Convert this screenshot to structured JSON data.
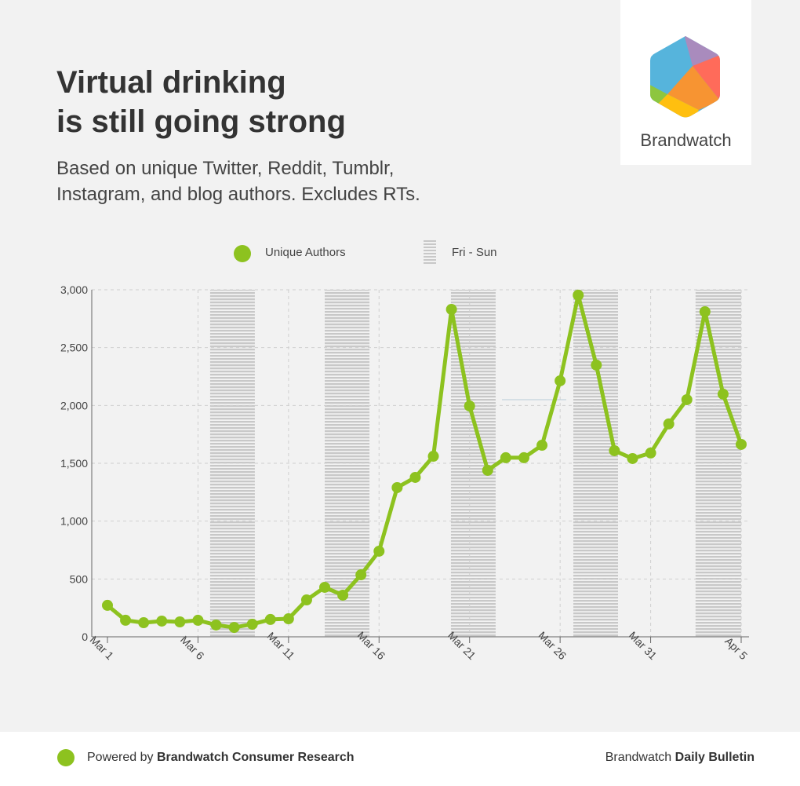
{
  "header": {
    "title_line1": "Virtual drinking",
    "title_line2": "is still going strong",
    "subtitle_line1": "Based on unique Twitter, Reddit, Tumblr,",
    "subtitle_line2": "Instagram, and blog authors. Excludes RTs."
  },
  "logo": {
    "text": "Brandwatch"
  },
  "footer": {
    "powered_prefix": "Powered by ",
    "powered_brand": "Brandwatch Consumer Research",
    "right_prefix": "Brandwatch ",
    "right_bold": "Daily Bulletin"
  },
  "colors": {
    "line": "#8dc21f",
    "band": "#c8c8c8",
    "grid": "#cfcfcf"
  },
  "chart_data": {
    "type": "line",
    "title": "Virtual drinking is still going strong",
    "legend": [
      {
        "label": "Unique Authors",
        "icon": "green-dot"
      },
      {
        "label": "Fri - Sun",
        "icon": "striped-bar"
      }
    ],
    "legend_position": "top-center",
    "x_ticks": [
      "Mar 1",
      "Mar 6",
      "Mar 11",
      "Mar 16",
      "Mar 21",
      "Mar 26",
      "Mar 31",
      "Apr 5"
    ],
    "y_ticks": [
      "0",
      "500",
      "1,000",
      "1,500",
      "2,000",
      "2,500",
      "3,000"
    ],
    "ylim": [
      0,
      3000
    ],
    "x": [
      "Mar 1",
      "Mar 2",
      "Mar 3",
      "Mar 4",
      "Mar 5",
      "Mar 6",
      "Mar 7",
      "Mar 8",
      "Mar 9",
      "Mar 10",
      "Mar 11",
      "Mar 12",
      "Mar 13",
      "Mar 14",
      "Mar 15",
      "Mar 16",
      "Mar 17",
      "Mar 18",
      "Mar 19",
      "Mar 20",
      "Mar 21",
      "Mar 22",
      "Mar 23",
      "Mar 24",
      "Mar 25",
      "Mar 26",
      "Mar 27",
      "Mar 28",
      "Mar 29",
      "Mar 30",
      "Mar 31",
      "Apr 1",
      "Apr 2",
      "Apr 3",
      "Apr 4",
      "Apr 5"
    ],
    "series": [
      {
        "name": "Unique Authors",
        "values": [
          272,
          143,
          122,
          136,
          129,
          143,
          102,
          81,
          109,
          150,
          156,
          319,
          428,
          360,
          536,
          740,
          1290,
          1378,
          1561,
          2830,
          1995,
          1439,
          1548,
          1548,
          1656,
          2213,
          2953,
          2349,
          1609,
          1541,
          1589,
          1840,
          2050,
          2810,
          2098,
          1663
        ]
      }
    ],
    "weekend_bands_day_offset": [
      [
        5.67,
        8.14
      ],
      [
        12.0,
        14.47
      ],
      [
        18.97,
        21.44
      ],
      [
        25.73,
        28.2
      ],
      [
        32.48,
        35.0
      ]
    ],
    "grid": true
  }
}
